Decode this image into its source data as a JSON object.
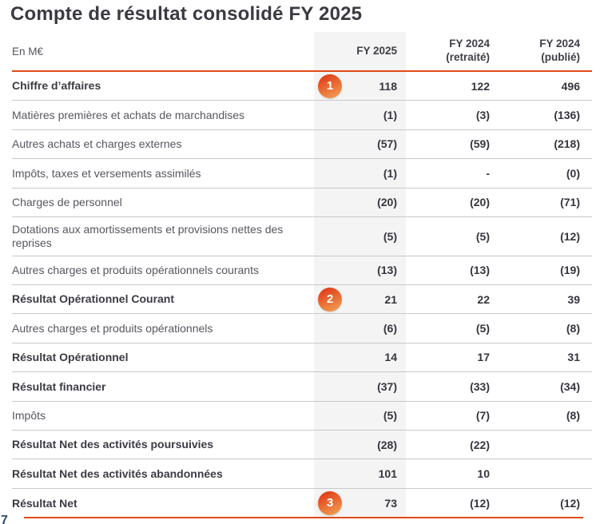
{
  "page": {
    "title": "Compte de résultat consolidé FY 2025",
    "page_number": "7"
  },
  "colors": {
    "accent_orange": "#e04a16",
    "column_highlight": "#f4f4f5",
    "row_separator": "#c8c8c8",
    "badge_gradient_start": "#e2421c",
    "badge_gradient_end": "#f09a4f",
    "title_text": "#3a3a42",
    "page_number_navy": "#2d4a74"
  },
  "table": {
    "unit_label": "En M€",
    "columns": [
      {
        "line1": "FY 2025",
        "line2": ""
      },
      {
        "line1": "FY 2024",
        "line2": "(retraité)"
      },
      {
        "line1": "FY 2024",
        "line2": "(publié)"
      }
    ],
    "rows": [
      {
        "label": "Chiffre d’affaires",
        "badge": "1",
        "v2025": "118",
        "v2024r": "122",
        "v2024p": "496"
      },
      {
        "label": "Matières premières et achats de marchandises",
        "v2025": "(1)",
        "v2024r": "(3)",
        "v2024p": "(136)"
      },
      {
        "label": "Autres achats et charges externes",
        "v2025": "(57)",
        "v2024r": "(59)",
        "v2024p": "(218)"
      },
      {
        "label": "Impôts, taxes et versements assimilés",
        "v2025": "(1)",
        "v2024r": "-",
        "v2024p": "(0)"
      },
      {
        "label": "Charges de personnel",
        "v2025": "(20)",
        "v2024r": "(20)",
        "v2024p": "(71)"
      },
      {
        "label": "Dotations aux amortissements et provisions nettes des reprises",
        "v2025": "(5)",
        "v2024r": "(5)",
        "v2024p": "(12)"
      },
      {
        "label": "Autres charges et produits opérationnels courants",
        "v2025": "(13)",
        "v2024r": "(13)",
        "v2024p": "(19)"
      },
      {
        "label": "Résultat Opérationnel Courant",
        "badge": "2",
        "v2025": "21",
        "v2024r": "22",
        "v2024p": "39"
      },
      {
        "label": "Autres charges et produits opérationnels",
        "v2025": "(6)",
        "v2024r": "(5)",
        "v2024p": "(8)"
      },
      {
        "label": "Résultat Opérationnel",
        "v2025": "14",
        "v2024r": "17",
        "v2024p": "31"
      },
      {
        "label": "Résultat financier",
        "v2025": "(37)",
        "v2024r": "(33)",
        "v2024p": "(34)"
      },
      {
        "label": "Impôts",
        "v2025": "(5)",
        "v2024r": "(7)",
        "v2024p": "(8)"
      },
      {
        "label": "Résultat Net des activités poursuivies",
        "v2025": "(28)",
        "v2024r": "(22)",
        "v2024p": ""
      },
      {
        "label": "Résultat Net des activités abandonnées",
        "v2025": "101",
        "v2024r": "10",
        "v2024p": ""
      },
      {
        "label": "Résultat Net",
        "badge": "3",
        "v2025": "73",
        "v2024r": "(12)",
        "v2024p": "(12)"
      }
    ]
  }
}
